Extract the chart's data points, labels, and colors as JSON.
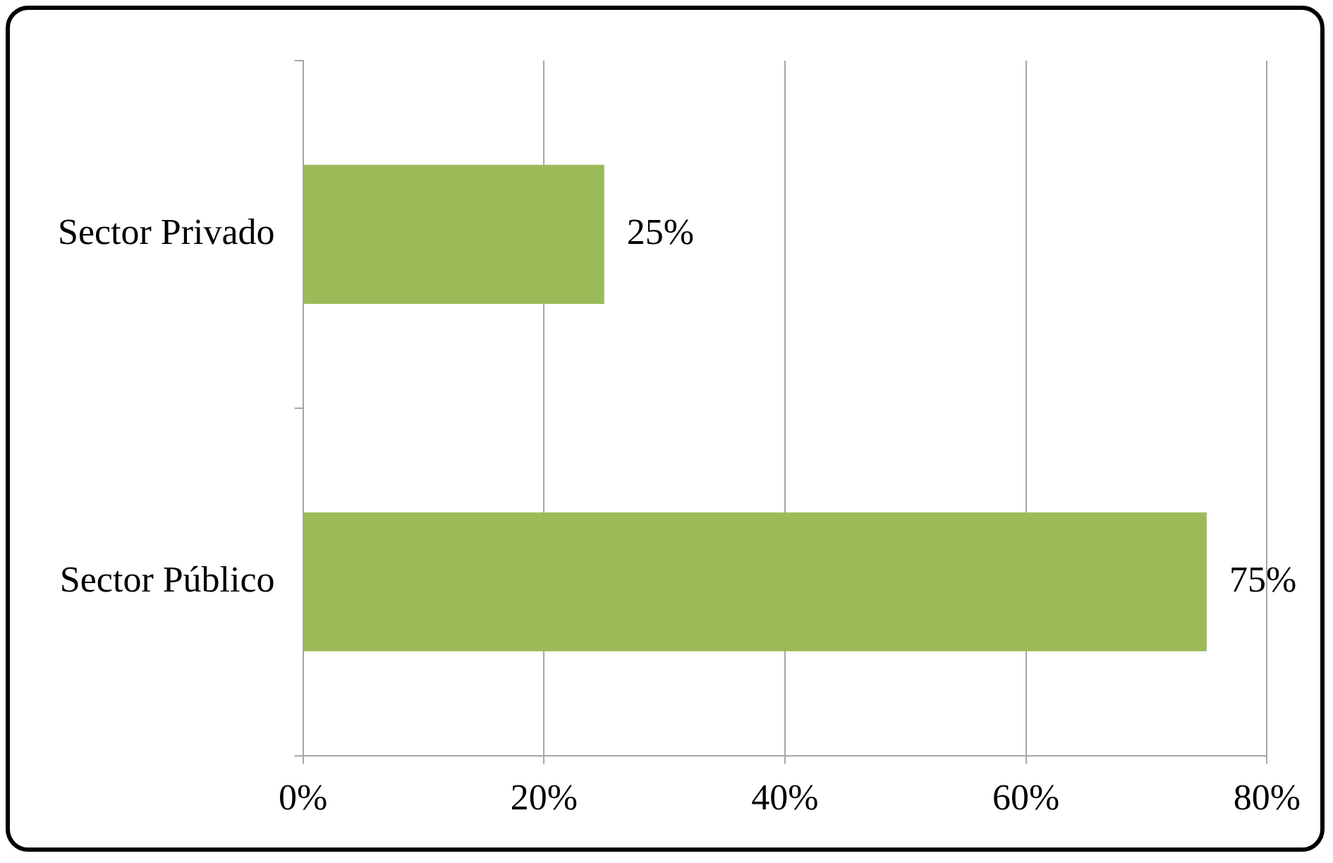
{
  "chart_data": {
    "type": "bar",
    "orientation": "horizontal",
    "categories": [
      "Sector Privado",
      "Sector Público"
    ],
    "values": [
      25,
      75
    ],
    "color": "#9bbb59",
    "value_labels": [
      "25%",
      "75%"
    ],
    "xlim": [
      0,
      80
    ],
    "xticks": [
      {
        "value": 0,
        "label": "0%"
      },
      {
        "value": 20,
        "label": "20%"
      },
      {
        "value": 40,
        "label": "40%"
      },
      {
        "value": 60,
        "label": "60%"
      },
      {
        "value": 80,
        "label": "80%"
      }
    ],
    "grid": "x",
    "legend": false
  }
}
